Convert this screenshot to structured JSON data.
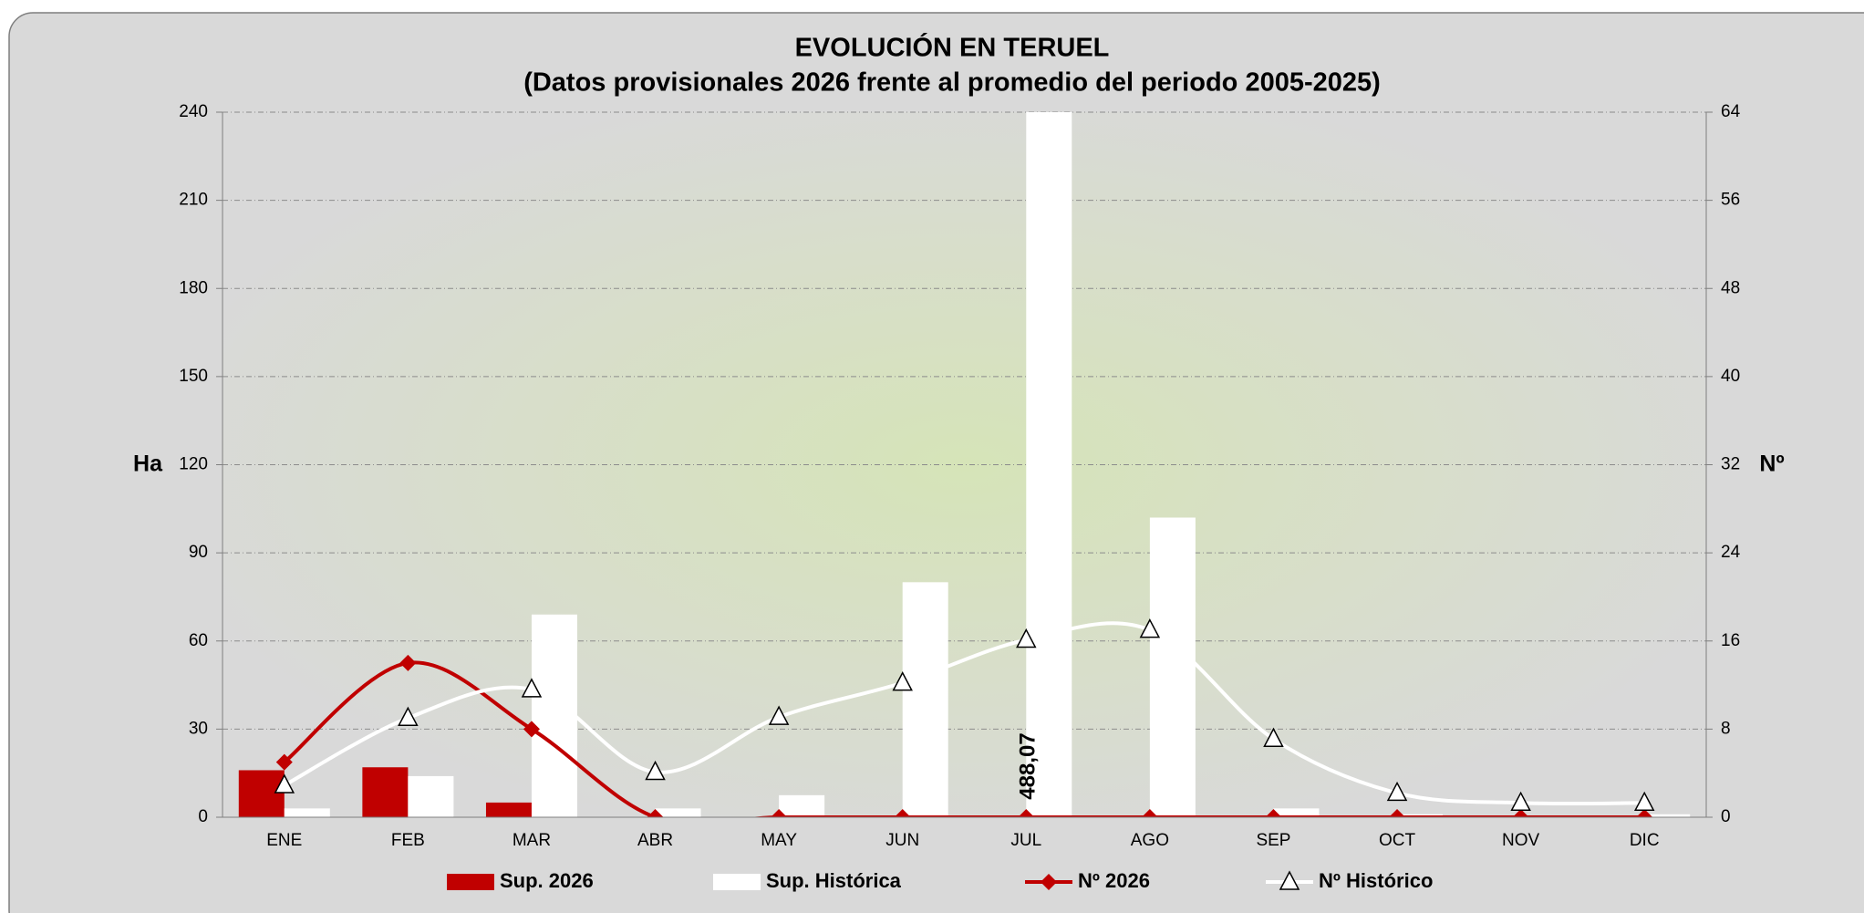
{
  "chart_data": {
    "type": "bar_line",
    "title": "EVOLUCIÓN EN TERUEL",
    "subtitle": "(Datos provisionales 2026 frente al promedio del periodo 2005-2025)",
    "ylabel": "Ha",
    "y2label": "Nº",
    "categories": [
      "ENE",
      "FEB",
      "MAR",
      "ABR",
      "MAY",
      "JUN",
      "JUL",
      "AGO",
      "SEP",
      "OCT",
      "NOV",
      "DIC"
    ],
    "series": [
      {
        "name": "Sup. 2026",
        "type": "bar",
        "color": "#c00000",
        "values": [
          16,
          17,
          5,
          0,
          0,
          0,
          0,
          0,
          0,
          0,
          0,
          0
        ]
      },
      {
        "name": "Sup. Histórica",
        "type": "bar",
        "color": "#ffffff",
        "values": [
          3,
          14,
          69,
          3,
          7.5,
          80,
          488.07,
          102,
          3,
          1,
          0.5,
          1
        ],
        "value_labels": [
          null,
          null,
          null,
          null,
          null,
          null,
          "488,07",
          null,
          null,
          null,
          null,
          null
        ]
      },
      {
        "name": "Nº 2026",
        "type": "line",
        "axis": "y2",
        "color": "#c00000",
        "marker": "diamond",
        "values": [
          5,
          14,
          8,
          0,
          0,
          0,
          0,
          0,
          0,
          0,
          0,
          0
        ]
      },
      {
        "name": "Nº Histórico",
        "type": "line",
        "axis": "y2",
        "color": "#ffffff",
        "marker": "triangle",
        "values": [
          2.9,
          9,
          11.6,
          4.1,
          9.1,
          12.2,
          16.1,
          17,
          7.1,
          2.2,
          1.3,
          1.3
        ]
      }
    ],
    "ylim": [
      0,
      240
    ],
    "yticks": [
      0,
      30,
      60,
      90,
      120,
      150,
      180,
      210,
      240
    ],
    "y2lim": [
      0,
      64
    ],
    "y2ticks": [
      0,
      8,
      16,
      24,
      32,
      40,
      48,
      56,
      64
    ],
    "grid": true,
    "legend": "bottom"
  }
}
